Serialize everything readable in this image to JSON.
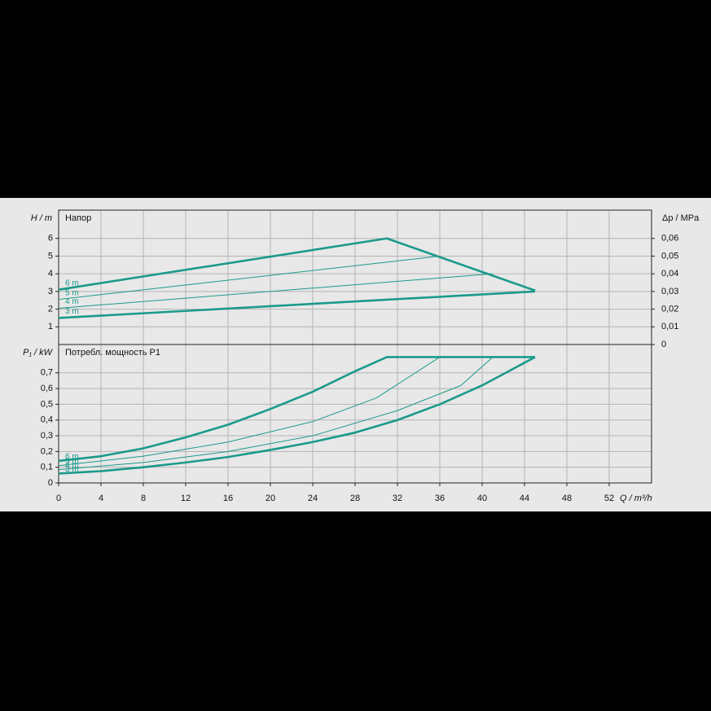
{
  "chart_data": [
    {
      "type": "line",
      "title": "Напор",
      "y_label": "H / m",
      "y2_label": "Δp / MPa",
      "xlim": [
        0,
        56
      ],
      "ylim": [
        0,
        7.6
      ],
      "yticks": [
        1,
        2,
        3,
        4,
        5,
        6
      ],
      "y2lim": [
        0,
        0.076
      ],
      "y2ticks": [
        0,
        {
          "value": 0.01,
          "label": "0,01"
        },
        {
          "value": 0.02,
          "label": "0,02"
        },
        {
          "value": 0.03,
          "label": "0,03"
        },
        {
          "value": 0.04,
          "label": "0,04"
        },
        {
          "value": 0.05,
          "label": "0,05"
        },
        {
          "value": 0.06,
          "label": "0,06"
        }
      ],
      "grid": true,
      "series": [
        {
          "name": "6 m",
          "color": "#1a9a8a",
          "x": [
            0,
            31,
            45
          ],
          "values": [
            3.1,
            6.0,
            3.05
          ]
        },
        {
          "name": "5 m",
          "color": "#1a9a8a",
          "x": [
            0,
            36
          ],
          "values": [
            2.55,
            5.0
          ]
        },
        {
          "name": "4 m",
          "color": "#1a9a8a",
          "x": [
            0,
            41
          ],
          "values": [
            2.05,
            4.0
          ]
        },
        {
          "name": "3 m",
          "color": "#1a9a8a",
          "x": [
            0,
            45
          ],
          "values": [
            1.5,
            3.0
          ]
        }
      ]
    },
    {
      "type": "line",
      "title": "Потребл. мощность P1",
      "y_label": "P₁ / kW",
      "x_label": "Q / m³/h",
      "xlim": [
        0,
        56
      ],
      "xticks": [
        0,
        4,
        8,
        12,
        16,
        20,
        24,
        28,
        32,
        36,
        40,
        44,
        48,
        52
      ],
      "ylim": [
        0,
        0.88
      ],
      "yticks": [
        0,
        {
          "value": 0.1,
          "label": "0,1"
        },
        {
          "value": 0.2,
          "label": "0,2"
        },
        {
          "value": 0.3,
          "label": "0,3"
        },
        {
          "value": 0.4,
          "label": "0,4"
        },
        {
          "value": 0.5,
          "label": "0,5"
        },
        {
          "value": 0.6,
          "label": "0,6"
        },
        {
          "value": 0.7,
          "label": "0,7"
        }
      ],
      "grid": true,
      "series": [
        {
          "name": "6 m",
          "color": "#1a9a8a",
          "x": [
            0,
            4,
            8,
            12,
            16,
            20,
            24,
            28,
            31,
            45
          ],
          "values": [
            0.14,
            0.17,
            0.22,
            0.29,
            0.37,
            0.47,
            0.58,
            0.71,
            0.8,
            0.8
          ]
        },
        {
          "name": "5 m",
          "color": "#1a9a8a",
          "x": [
            0,
            8,
            16,
            24,
            30,
            36
          ],
          "values": [
            0.11,
            0.17,
            0.26,
            0.39,
            0.54,
            0.8
          ]
        },
        {
          "name": "4 m",
          "color": "#1a9a8a",
          "x": [
            0,
            8,
            16,
            24,
            32,
            38,
            41
          ],
          "values": [
            0.085,
            0.13,
            0.2,
            0.3,
            0.46,
            0.62,
            0.8
          ]
        },
        {
          "name": "3 m",
          "color": "#1a9a8a",
          "x": [
            0,
            4,
            8,
            12,
            16,
            20,
            24,
            28,
            32,
            36,
            40,
            45
          ],
          "values": [
            0.06,
            0.075,
            0.1,
            0.13,
            0.165,
            0.21,
            0.26,
            0.32,
            0.4,
            0.5,
            0.62,
            0.8
          ]
        }
      ]
    }
  ]
}
